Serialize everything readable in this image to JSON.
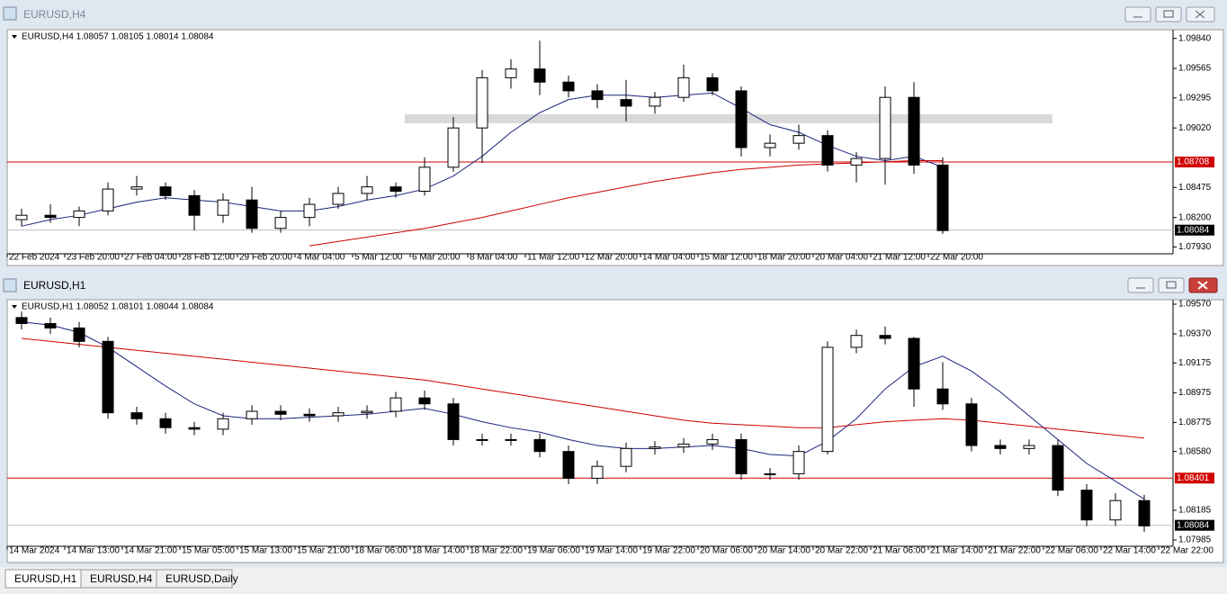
{
  "tabs": [
    "EURUSD,H1",
    "EURUSD,H4",
    "EURUSD,Daily"
  ],
  "chart_data": [
    {
      "type": "candlestick",
      "window_title": "EURUSD,H4",
      "info": "EURUSD,H4 1.08057 1.08105 1.08014 1.08084",
      "candles": [
        [
          1.0818,
          1.0828,
          1.0812,
          1.0822
        ],
        [
          1.0822,
          1.0832,
          1.0815,
          1.082
        ],
        [
          1.082,
          1.083,
          1.0812,
          1.0826
        ],
        [
          1.0826,
          1.0852,
          1.0822,
          1.0846
        ],
        [
          1.0846,
          1.0858,
          1.084,
          1.0848
        ],
        [
          1.0848,
          1.0852,
          1.0836,
          1.084
        ],
        [
          1.084,
          1.0845,
          1.0808,
          1.0822
        ],
        [
          1.0822,
          1.0842,
          1.0815,
          1.0836
        ],
        [
          1.0836,
          1.0848,
          1.0806,
          1.081
        ],
        [
          1.081,
          1.0826,
          1.0806,
          1.082
        ],
        [
          1.082,
          1.0838,
          1.0812,
          1.0832
        ],
        [
          1.0832,
          1.0848,
          1.0828,
          1.0842
        ],
        [
          1.0842,
          1.0858,
          1.0836,
          1.0848
        ],
        [
          1.0848,
          1.0852,
          1.0838,
          1.0844
        ],
        [
          1.0844,
          1.0875,
          1.084,
          1.0866
        ],
        [
          1.0866,
          1.0912,
          1.0862,
          1.0902
        ],
        [
          1.0902,
          1.0955,
          1.087,
          1.0948
        ],
        [
          1.0948,
          1.0965,
          1.0938,
          1.0956
        ],
        [
          1.0956,
          1.0982,
          1.0932,
          1.0944
        ],
        [
          1.0944,
          1.095,
          1.093,
          1.0936
        ],
        [
          1.0936,
          1.0942,
          1.092,
          1.0928
        ],
        [
          1.0928,
          1.0946,
          1.0908,
          1.0922
        ],
        [
          1.0922,
          1.0935,
          1.0915,
          1.093
        ],
        [
          1.093,
          1.096,
          1.0926,
          1.0948
        ],
        [
          1.0948,
          1.0952,
          1.0932,
          1.0936
        ],
        [
          1.0936,
          1.094,
          1.0876,
          1.0884
        ],
        [
          1.0884,
          1.0896,
          1.0876,
          1.0888
        ],
        [
          1.0888,
          1.0905,
          1.0882,
          1.0895
        ],
        [
          1.0895,
          1.09,
          1.0862,
          1.0868
        ],
        [
          1.0868,
          1.088,
          1.0852,
          1.0874
        ],
        [
          1.0874,
          1.094,
          1.085,
          1.093
        ],
        [
          1.093,
          1.0944,
          1.086,
          1.0868
        ],
        [
          1.0868,
          1.0875,
          1.0805,
          1.0808
        ]
      ],
      "series": [
        {
          "color": "#1a237e",
          "values": [
            1.0812,
            1.0818,
            1.0822,
            1.0828,
            1.0834,
            1.0838,
            1.0836,
            1.0834,
            1.083,
            1.0826,
            1.0826,
            1.083,
            1.0836,
            1.084,
            1.0846,
            1.0858,
            1.0876,
            1.0898,
            1.0916,
            1.0928,
            1.0932,
            1.0932,
            1.093,
            1.0932,
            1.0934,
            1.092,
            1.0905,
            1.0898,
            1.0886,
            1.0876,
            1.0872,
            1.0876,
            1.0866
          ]
        },
        {
          "color": "#cc0000",
          "values": [
            null,
            null,
            null,
            null,
            null,
            null,
            null,
            null,
            null,
            null,
            1.0794,
            1.0798,
            1.0802,
            1.0806,
            1.081,
            1.0815,
            1.082,
            1.0826,
            1.0832,
            1.0838,
            1.0843,
            1.0848,
            1.0853,
            1.0857,
            1.0861,
            1.0864,
            1.0866,
            1.0868,
            1.0869,
            1.087,
            1.0871,
            1.0872,
            1.0872
          ]
        }
      ],
      "ylim": [
        1.079,
        1.0992
      ],
      "yticks": [
        {
          "value": 1.0984,
          "label": "1.09840"
        },
        1.09565,
        1.09295,
        {
          "value": 1.0902,
          "label": "1.09020"
        },
        1.08475,
        {
          "value": 1.082,
          "label": "1.08200"
        },
        {
          "value": 1.0793,
          "label": "1.07930"
        }
      ],
      "level": 1.08708,
      "current": 1.08084,
      "time_labels": [
        "22 Feb 2024",
        "23 Feb 20:00",
        "27 Feb 04:00",
        "28 Feb 12:00",
        "29 Feb 20:00",
        "4 Mar 04:00",
        "5 Mar 12:00",
        "6 Mar 20:00",
        "8 Mar 04:00",
        "11 Mar 12:00",
        "12 Mar 20:00",
        "14 Mar 04:00",
        "15 Mar 12:00",
        "18 Mar 20:00",
        "20 Mar 04:00",
        "21 Mar 12:00",
        "22 Mar 20:00"
      ]
    },
    {
      "type": "candlestick",
      "window_title": "EURUSD,H1",
      "info": "EURUSD,H1 1.08052 1.08101 1.08044 1.08084",
      "candles": [
        [
          1.0948,
          1.0952,
          1.094,
          1.0944
        ],
        [
          1.0944,
          1.0948,
          1.0937,
          1.0941
        ],
        [
          1.0941,
          1.0945,
          1.0928,
          1.0932
        ],
        [
          1.0932,
          1.0935,
          1.088,
          1.0884
        ],
        [
          1.0884,
          1.0888,
          1.0876,
          1.088
        ],
        [
          1.088,
          1.0884,
          1.087,
          1.0874
        ],
        [
          1.0874,
          1.0878,
          1.0869,
          1.0873
        ],
        [
          1.0873,
          1.0884,
          1.0869,
          1.088
        ],
        [
          1.088,
          1.0889,
          1.0876,
          1.0885
        ],
        [
          1.0885,
          1.0889,
          1.0879,
          1.0883
        ],
        [
          1.0883,
          1.0887,
          1.0878,
          1.0882
        ],
        [
          1.0882,
          1.0888,
          1.0878,
          1.0884
        ],
        [
          1.0884,
          1.0889,
          1.088,
          1.0885
        ],
        [
          1.0885,
          1.0898,
          1.0881,
          1.0894
        ],
        [
          1.0894,
          1.0899,
          1.0886,
          1.089
        ],
        [
          1.089,
          1.0894,
          1.0862,
          1.0866
        ],
        [
          1.0866,
          1.087,
          1.0862,
          1.0866
        ],
        [
          1.0866,
          1.087,
          1.0862,
          1.0866
        ],
        [
          1.0866,
          1.087,
          1.0854,
          1.0858
        ],
        [
          1.0858,
          1.0862,
          1.0836,
          1.084
        ],
        [
          1.084,
          1.0852,
          1.0836,
          1.0848
        ],
        [
          1.0848,
          1.0864,
          1.0844,
          1.086
        ],
        [
          1.086,
          1.0865,
          1.0856,
          1.0861
        ],
        [
          1.0861,
          1.0867,
          1.0857,
          1.0863
        ],
        [
          1.0863,
          1.087,
          1.0859,
          1.0866
        ],
        [
          1.0866,
          1.087,
          1.0839,
          1.0843
        ],
        [
          1.0843,
          1.0847,
          1.0839,
          1.0843
        ],
        [
          1.0843,
          1.0862,
          1.0839,
          1.0858
        ],
        [
          1.0858,
          1.0932,
          1.0856,
          1.0928
        ],
        [
          1.0928,
          1.094,
          1.0924,
          1.0936
        ],
        [
          1.0936,
          1.0942,
          1.093,
          1.0934
        ],
        [
          1.0934,
          1.0935,
          1.0888,
          1.09
        ],
        [
          1.09,
          1.0918,
          1.0886,
          1.089
        ],
        [
          1.089,
          1.0894,
          1.0858,
          1.0862
        ],
        [
          1.0862,
          1.0866,
          1.0856,
          1.086
        ],
        [
          1.086,
          1.0866,
          1.0856,
          1.0862
        ],
        [
          1.0862,
          1.0866,
          1.0828,
          1.0832
        ],
        [
          1.0832,
          1.0836,
          1.0808,
          1.0812
        ],
        [
          1.0812,
          1.083,
          1.0808,
          1.0825
        ],
        [
          1.0825,
          1.0829,
          1.0804,
          1.0808
        ]
      ],
      "series": [
        {
          "color": "#1a237e",
          "values": [
            1.0945,
            1.0943,
            1.0938,
            1.0928,
            1.0915,
            1.0902,
            1.089,
            1.0882,
            1.088,
            1.088,
            1.0881,
            1.0882,
            1.0883,
            1.0885,
            1.0887,
            1.0883,
            1.0878,
            1.0874,
            1.0871,
            1.0866,
            1.0862,
            1.086,
            1.086,
            1.0861,
            1.0862,
            1.086,
            1.0856,
            1.0855,
            1.0865,
            1.088,
            1.09,
            1.0915,
            1.0922,
            1.0912,
            1.0898,
            1.0882,
            1.0866,
            1.085,
            1.0838,
            1.0826
          ]
        },
        {
          "color": "#cc0000",
          "values": [
            1.0934,
            1.0932,
            1.093,
            1.0928,
            1.0926,
            1.0924,
            1.0922,
            1.092,
            1.0918,
            1.0916,
            1.0914,
            1.0912,
            1.091,
            1.0908,
            1.0906,
            1.0903,
            1.09,
            1.0897,
            1.0894,
            1.0891,
            1.0888,
            1.0885,
            1.0882,
            1.0879,
            1.0877,
            1.0876,
            1.0875,
            1.0874,
            1.0874,
            1.0876,
            1.0878,
            1.0879,
            1.088,
            1.0879,
            1.0877,
            1.0875,
            1.0873,
            1.0871,
            1.0869,
            1.0867
          ]
        }
      ],
      "ylim": [
        1.07967,
        1.096
      ],
      "yticks": [
        {
          "value": 1.0957,
          "label": "1.09570"
        },
        {
          "value": 1.0937,
          "label": "1.09370"
        },
        1.09175,
        1.08975,
        1.08775,
        {
          "value": 1.0858,
          "label": "1.08580"
        },
        1.08185,
        1.07985
      ],
      "level": 1.08401,
      "current": 1.08084,
      "time_labels": [
        "14 Mar 2024",
        "14 Mar 13:00",
        "14 Mar 21:00",
        "15 Mar 05:00",
        "15 Mar 13:00",
        "15 Mar 21:00",
        "18 Mar 06:00",
        "18 Mar 14:00",
        "18 Mar 22:00",
        "19 Mar 06:00",
        "19 Mar 14:00",
        "19 Mar 22:00",
        "20 Mar 06:00",
        "20 Mar 14:00",
        "20 Mar 22:00",
        "21 Mar 06:00",
        "21 Mar 14:00",
        "21 Mar 22:00",
        "22 Mar 06:00",
        "22 Mar 14:00",
        "22 Mar 22:00"
      ]
    }
  ]
}
